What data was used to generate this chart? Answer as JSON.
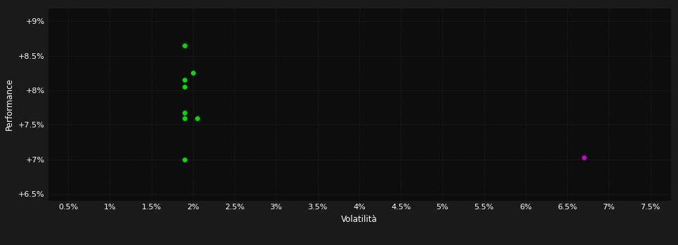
{
  "background_color": "#1a1a1a",
  "plot_bg_color": "#0d0d0d",
  "grid_color": "#2a2a2a",
  "text_color": "#ffffff",
  "xlabel": "Volatilità",
  "ylabel": "Performance",
  "xlim": [
    0.0025,
    0.0775
  ],
  "ylim": [
    0.064,
    0.092
  ],
  "xticks": [
    0.005,
    0.01,
    0.015,
    0.02,
    0.025,
    0.03,
    0.035,
    0.04,
    0.045,
    0.05,
    0.055,
    0.06,
    0.065,
    0.07,
    0.075
  ],
  "yticks": [
    0.065,
    0.07,
    0.075,
    0.08,
    0.085,
    0.09
  ],
  "xtick_labels": [
    "0.5%",
    "1%",
    "1.5%",
    "2%",
    "2.5%",
    "3%",
    "3.5%",
    "4%",
    "4.5%",
    "5%",
    "5.5%",
    "6%",
    "6.5%",
    "7%",
    "7.5%"
  ],
  "ytick_labels": [
    "+6.5%",
    "+7%",
    "+7.5%",
    "+8%",
    "+8.5%",
    "+9%"
  ],
  "green_points": [
    [
      0.019,
      0.0865
    ],
    [
      0.02,
      0.0825
    ],
    [
      0.019,
      0.0815
    ],
    [
      0.019,
      0.0805
    ],
    [
      0.019,
      0.0768
    ],
    [
      0.019,
      0.076
    ],
    [
      0.0205,
      0.076
    ],
    [
      0.019,
      0.07
    ]
  ],
  "magenta_points": [
    [
      0.067,
      0.0703
    ]
  ],
  "green_color": "#00dd00",
  "magenta_color": "#cc00cc",
  "marker_size": 5,
  "tick_fontsize": 8,
  "label_fontsize": 8.5
}
